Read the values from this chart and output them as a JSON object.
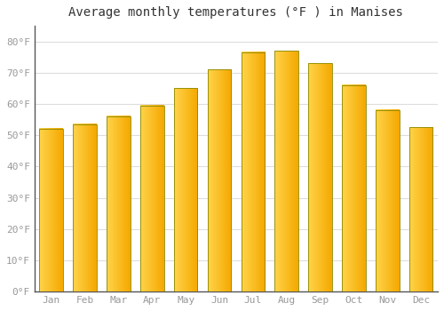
{
  "title": "Average monthly temperatures (°F ) in Manises",
  "months": [
    "Jan",
    "Feb",
    "Mar",
    "Apr",
    "May",
    "Jun",
    "Jul",
    "Aug",
    "Sep",
    "Oct",
    "Nov",
    "Dec"
  ],
  "values": [
    52,
    53.5,
    56,
    59.5,
    65,
    71,
    76.5,
    77,
    73,
    66,
    58,
    52.5
  ],
  "bar_color_left": "#FFD44A",
  "bar_color_right": "#F5A800",
  "bar_edge_color": "#888800",
  "background_color": "#FFFFFF",
  "grid_color": "#DDDDDD",
  "ylim": [
    0,
    85
  ],
  "yticks": [
    0,
    10,
    20,
    30,
    40,
    50,
    60,
    70,
    80
  ],
  "ytick_labels": [
    "0°F",
    "10°F",
    "20°F",
    "30°F",
    "40°F",
    "50°F",
    "60°F",
    "70°F",
    "80°F"
  ],
  "title_fontsize": 10,
  "tick_fontsize": 8,
  "tick_color": "#999999",
  "axis_line_color": "#555555",
  "bar_width": 0.7,
  "n_gradient_steps": 50
}
